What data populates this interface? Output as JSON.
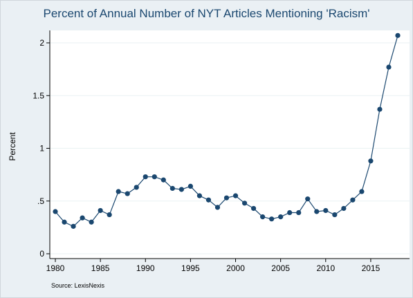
{
  "chart_data": {
    "type": "line",
    "title": "Percent of Annual Number of NYT Articles Mentioning 'Racism'",
    "ylabel": "Percent",
    "xlabel": "",
    "note": "Source: LexisNexis",
    "xlim": [
      1980,
      2018
    ],
    "ylim": [
      0,
      2.1
    ],
    "x_ticks": [
      {
        "value": 1980,
        "label": "1980"
      },
      {
        "value": 1985,
        "label": "1985"
      },
      {
        "value": 1990,
        "label": "1990"
      },
      {
        "value": 1995,
        "label": "1995"
      },
      {
        "value": 2000,
        "label": "2000"
      },
      {
        "value": 2005,
        "label": "2005"
      },
      {
        "value": 2010,
        "label": "2010"
      },
      {
        "value": 2015,
        "label": "2015"
      }
    ],
    "y_ticks": [
      {
        "value": 0,
        "label": "0"
      },
      {
        "value": 0.5,
        "label": ".5"
      },
      {
        "value": 1,
        "label": "1"
      },
      {
        "value": 1.5,
        "label": "1.5"
      },
      {
        "value": 2,
        "label": "2"
      }
    ],
    "grid": true,
    "series": [
      {
        "x": [
          1980,
          1981,
          1982,
          1983,
          1984,
          1985,
          1986,
          1987,
          1988,
          1989,
          1990,
          1991,
          1992,
          1993,
          1994,
          1995,
          1996,
          1997,
          1998,
          1999,
          2000,
          2001,
          2002,
          2003,
          2004,
          2005,
          2006,
          2007,
          2008,
          2009,
          2010,
          2011,
          2012,
          2013,
          2014,
          2015,
          2016,
          2017,
          2018
        ],
        "y": [
          0.4,
          0.3,
          0.26,
          0.34,
          0.3,
          0.41,
          0.37,
          0.59,
          0.57,
          0.63,
          0.73,
          0.73,
          0.7,
          0.62,
          0.61,
          0.64,
          0.55,
          0.51,
          0.44,
          0.53,
          0.55,
          0.48,
          0.43,
          0.35,
          0.33,
          0.35,
          0.39,
          0.39,
          0.52,
          0.4,
          0.41,
          0.37,
          0.43,
          0.51,
          0.59,
          0.88,
          1.37,
          1.77,
          2.07
        ]
      }
    ],
    "colors": {
      "line": "#1a476f",
      "marker": "#1a476f",
      "grid": "#eaf2f3",
      "axis": "#000000",
      "title": "#1a476f"
    }
  }
}
